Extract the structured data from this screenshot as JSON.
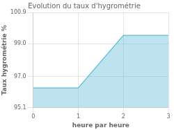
{
  "chart_data": {
    "type": "line",
    "title": "Evolution du taux d'hygrométrie",
    "x_label": "heure par heure",
    "y_label": "Taux hygrométrie %",
    "x": [
      0,
      1,
      2,
      3
    ],
    "values": [
      96.3,
      96.3,
      99.5,
      99.5
    ],
    "color": "#5bb8d4",
    "xlim": [
      0,
      3
    ],
    "xticks": [
      0,
      1,
      2,
      3
    ],
    "ylim": [
      95.1,
      100.9
    ],
    "yticks": [
      95.1,
      {
        "value": 97.0,
        "label": "97.0"
      },
      {
        "value": 99.0,
        "label": "99.0"
      },
      100.9
    ],
    "grid": true
  }
}
